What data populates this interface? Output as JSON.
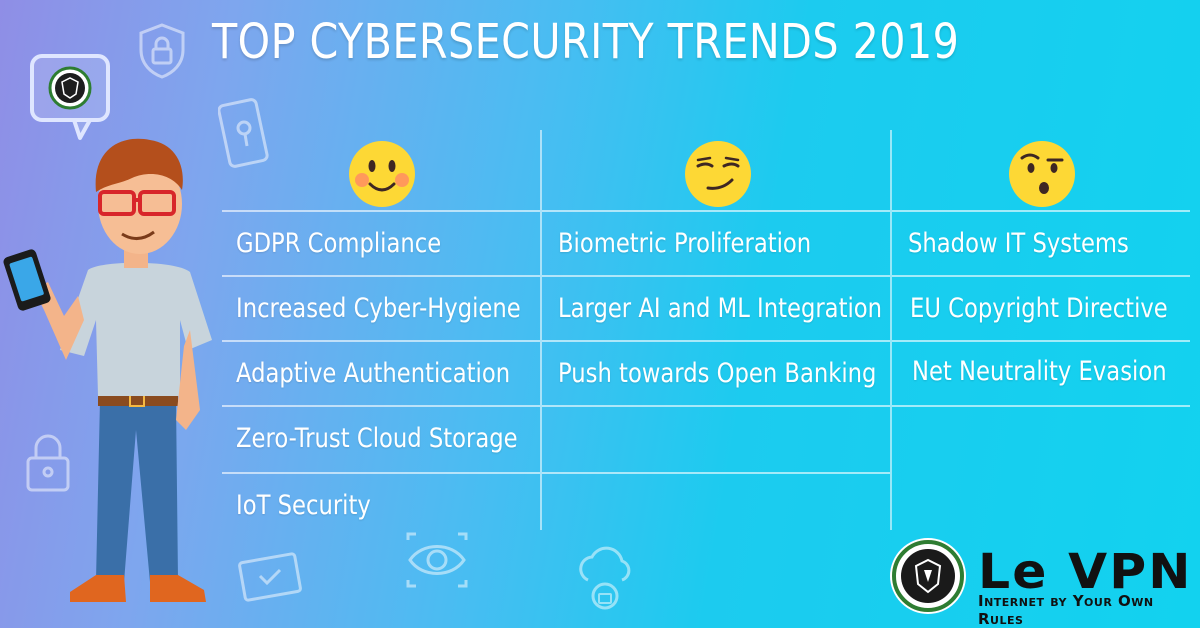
{
  "title": "TOP CYBERSECURITY TRENDS 2019",
  "columns": [
    {
      "emoji_icon": "smiling-blushing-face-icon",
      "items": [
        "GDPR Compliance",
        "Increased Cyber-Hygiene",
        "Adaptive Authentication",
        "Zero-Trust Cloud Storage",
        "IoT Security"
      ]
    },
    {
      "emoji_icon": "smirking-face-icon",
      "items": [
        "Biometric Proliferation",
        "Larger AI and ML Integration",
        "Push towards Open Banking"
      ]
    },
    {
      "emoji_icon": "raised-eyebrow-face-icon",
      "items": [
        "Shadow IT Systems",
        "EU Copyright Directive",
        "Net Neutrality Evasion"
      ]
    }
  ],
  "brand": {
    "name": "Le VPN",
    "tagline": "Internet by Your Own Rules"
  },
  "colors": {
    "gradient_start": "#8f8ee6",
    "gradient_end": "#12d2ef",
    "emoji_yellow": "#fdd835",
    "text": "#ffffff",
    "logo_green": "#2e7d32"
  }
}
